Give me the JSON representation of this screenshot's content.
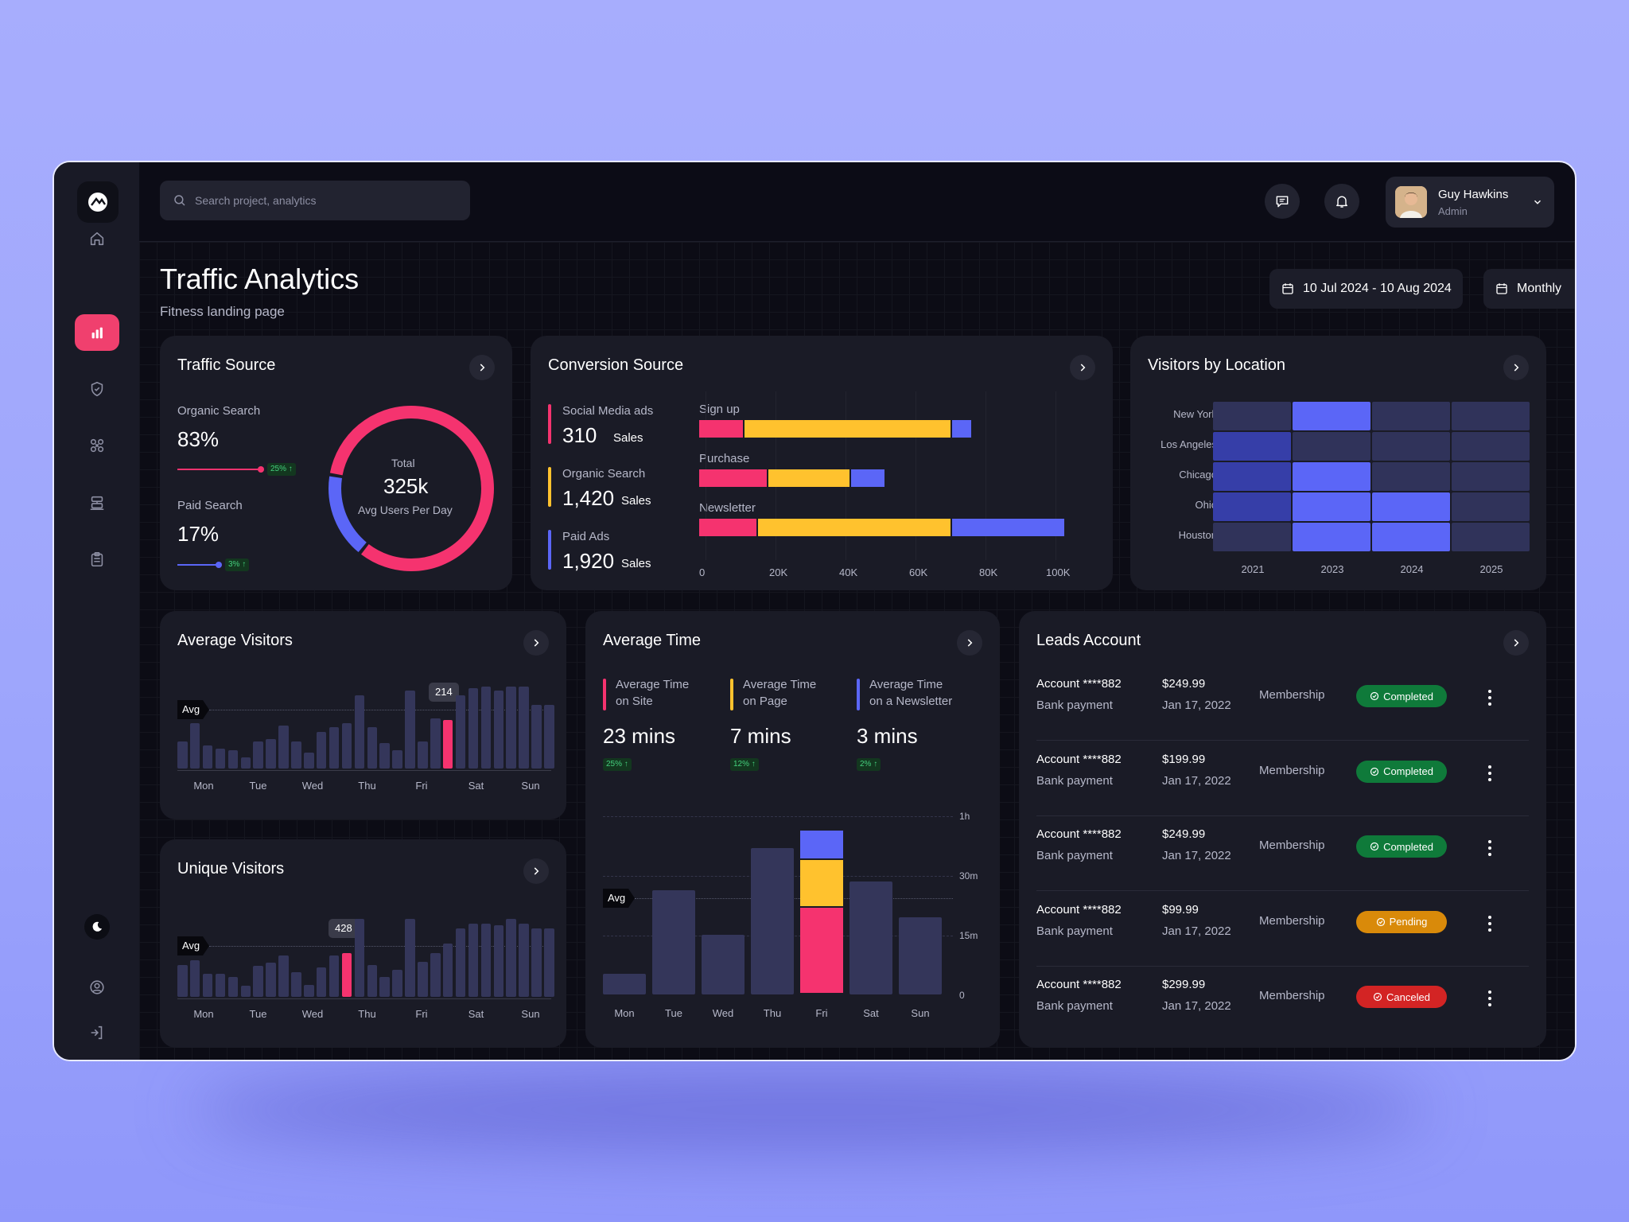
{
  "app": {
    "search_placeholder": "Search project, analytics"
  },
  "user": {
    "name": "Guy Hawkins",
    "role": "Admin"
  },
  "page": {
    "title": "Traffic Analytics",
    "subtitle": "Fitness landing page",
    "date_range": "10 Jul 2024 - 10 Aug 2024",
    "period": "Monthly"
  },
  "traffic_source": {
    "title": "Traffic Source",
    "organic_label": "Organic Search",
    "organic_value": "83%",
    "organic_badge": "25% ↑",
    "paid_label": "Paid Search",
    "paid_value": "17%",
    "paid_badge": "3% ↑",
    "donut_label": "Total",
    "donut_value": "325k",
    "donut_sub": "Avg Users Per Day"
  },
  "conversion_source": {
    "title": "Conversion Source",
    "items": [
      {
        "label": "Social Media ads",
        "value": "310",
        "unit": "Sales"
      },
      {
        "label": "Organic Search",
        "value": "1,420",
        "unit": "Sales"
      },
      {
        "label": "Paid Ads",
        "value": "1,920",
        "unit": "Sales"
      }
    ],
    "rows": [
      {
        "label": "Sign up"
      },
      {
        "label": "Purchase"
      },
      {
        "label": "Newsletter"
      }
    ],
    "ticks": [
      "0",
      "20K",
      "40K",
      "60K",
      "80K",
      "100K"
    ]
  },
  "visitors_location": {
    "title": "Visitors by Location",
    "cities": [
      "New York",
      "Los Angeles",
      "Chicago",
      "Ohio",
      "Houston"
    ],
    "years": [
      "2021",
      "2023",
      "2024",
      "2025"
    ]
  },
  "average_visitors": {
    "title": "Average Visitors",
    "avg_label": "Avg",
    "tooltip": "214",
    "days": [
      "Mon",
      "Tue",
      "Wed",
      "Thu",
      "Fri",
      "Sat",
      "Sun"
    ]
  },
  "unique_visitors": {
    "title": "Unique Visitors",
    "avg_label": "Avg",
    "tooltip": "428",
    "days": [
      "Mon",
      "Tue",
      "Wed",
      "Thu",
      "Fri",
      "Sat",
      "Sun"
    ]
  },
  "average_time": {
    "title": "Average Time",
    "stats": [
      {
        "label1": "Average Time",
        "label2": "on Site",
        "value": "23 mins",
        "badge": "25% ↑"
      },
      {
        "label1": "Average Time",
        "label2": "on Page",
        "value": "7 mins",
        "badge": "12% ↑"
      },
      {
        "label1": "Average Time",
        "label2": "on a Newsletter",
        "value": "3 mins",
        "badge": "2% ↑"
      }
    ],
    "avg_label": "Avg",
    "yticks": [
      "1h",
      "30m",
      "15m",
      "0"
    ],
    "days": [
      "Mon",
      "Tue",
      "Wed",
      "Thu",
      "Fri",
      "Sat",
      "Sun"
    ]
  },
  "leads": {
    "title": "Leads Account",
    "rows": [
      {
        "account": "Account  ****882",
        "method": "Bank payment",
        "amount": "$249.99",
        "date": "Jan 17, 2022",
        "type": "Membership",
        "status": "Completed"
      },
      {
        "account": "Account  ****882",
        "method": "Bank payment",
        "amount": "$199.99",
        "date": "Jan 17, 2022",
        "type": "Membership",
        "status": "Completed"
      },
      {
        "account": "Account  ****882",
        "method": "Bank payment",
        "amount": "$249.99",
        "date": "Jan 17, 2022",
        "type": "Membership",
        "status": "Completed"
      },
      {
        "account": "Account  ****882",
        "method": "Bank payment",
        "amount": "$99.99",
        "date": "Jan 17, 2022",
        "type": "Membership",
        "status": "Pending"
      },
      {
        "account": "Account  ****882",
        "method": "Bank payment",
        "amount": "$299.99",
        "date": "Jan 17, 2022",
        "type": "Membership",
        "status": "Canceled"
      }
    ]
  },
  "colors": {
    "pink": "#f5336f",
    "yellow": "#ffc22e",
    "blue": "#5b66f7",
    "bar": "#34365a",
    "green": "#0f7a3a",
    "orange": "#d98a0a",
    "red": "#d32424"
  },
  "chart_data": [
    {
      "type": "pie",
      "title": "Traffic Source",
      "categories": [
        "Organic Search",
        "Paid Search"
      ],
      "values": [
        83,
        17
      ]
    },
    {
      "type": "bar",
      "title": "Conversion Source",
      "categories": [
        "Sign up",
        "Purchase",
        "Newsletter"
      ],
      "series": [
        {
          "name": "Social Media ads",
          "values": [
            13000,
            20000,
            17000
          ]
        },
        {
          "name": "Organic Search",
          "values": [
            60000,
            24000,
            56000
          ]
        },
        {
          "name": "Paid Ads",
          "values": [
            6000,
            10000,
            33000
          ]
        }
      ],
      "xlim": [
        0,
        108000
      ]
    },
    {
      "type": "heatmap",
      "title": "Visitors by Location",
      "x": [
        "2021",
        "2023",
        "2024",
        "2025"
      ],
      "y": [
        "New York",
        "Los Angeles",
        "Chicago",
        "Ohio",
        "Houston"
      ],
      "values": [
        [
          0,
          2,
          0,
          0
        ],
        [
          1,
          0,
          0,
          0
        ],
        [
          1,
          2,
          0,
          0
        ],
        [
          1,
          2,
          2,
          0
        ],
        [
          0,
          2,
          2,
          0
        ]
      ]
    },
    {
      "type": "bar",
      "title": "Average Visitors",
      "values": [
        30,
        50,
        25,
        22,
        20,
        12,
        30,
        32,
        47,
        30,
        17,
        40,
        45,
        50,
        80,
        45,
        28,
        20,
        85,
        30,
        55,
        53,
        80,
        88,
        90,
        85,
        90,
        90,
        70,
        70
      ],
      "highlight_index": 21,
      "avg": 54
    },
    {
      "type": "bar",
      "title": "Unique Visitors",
      "values": [
        35,
        40,
        25,
        25,
        22,
        12,
        34,
        37,
        45,
        27,
        13,
        32,
        45,
        48,
        85,
        35,
        22,
        30,
        85,
        38,
        48,
        58,
        75,
        80,
        80,
        78,
        85,
        80,
        75,
        75
      ],
      "highlight_index": 13,
      "avg": 66
    },
    {
      "type": "bar",
      "title": "Average Time",
      "categories": [
        "Mon",
        "Tue",
        "Wed",
        "Thu",
        "Fri",
        "Sat",
        "Sun"
      ],
      "values": [
        7,
        35,
        20,
        49,
        null,
        38,
        26
      ],
      "stacked_fri": {
        "pink": 29,
        "yellow": 16,
        "blue": 10
      },
      "yticks": [
        "1h",
        "30m",
        "15m",
        "0"
      ]
    }
  ]
}
